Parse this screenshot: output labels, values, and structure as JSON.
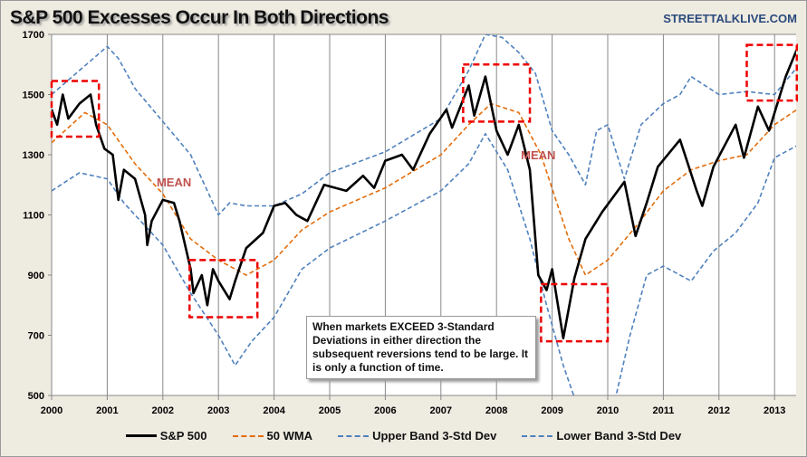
{
  "chart_data": {
    "type": "line",
    "title": "S&P 500 Excesses Occur In Both Directions",
    "source": "STREETTALKLIVE.COM",
    "xlim": [
      2000,
      2013.4
    ],
    "ylim": [
      500,
      1700
    ],
    "xticks": [
      2000,
      2001,
      2002,
      2003,
      2004,
      2005,
      2006,
      2007,
      2008,
      2009,
      2010,
      2011,
      2012,
      2013
    ],
    "yticks": [
      500,
      700,
      900,
      1100,
      1300,
      1500,
      1700
    ],
    "grid": "vertical",
    "legend_position": "bottom",
    "series": [
      {
        "name": "S&P 500",
        "color": "#000000",
        "style": "solid",
        "x": [
          2000,
          2000.1,
          2000.2,
          2000.3,
          2000.5,
          2000.7,
          2000.8,
          2000.95,
          2001.1,
          2001.2,
          2001.3,
          2001.5,
          2001.68,
          2001.72,
          2001.8,
          2002,
          2002.2,
          2002.3,
          2002.5,
          2002.55,
          2002.7,
          2002.8,
          2002.9,
          2003,
          2003.2,
          2003.3,
          2003.5,
          2003.8,
          2004,
          2004.2,
          2004.4,
          2004.6,
          2004.9,
          2005.3,
          2005.6,
          2005.8,
          2006,
          2006.3,
          2006.5,
          2006.8,
          2007.1,
          2007.2,
          2007.5,
          2007.6,
          2007.8,
          2008,
          2008.2,
          2008.4,
          2008.6,
          2008.75,
          2008.9,
          2009,
          2009.2,
          2009.4,
          2009.6,
          2009.9,
          2010.3,
          2010.5,
          2010.7,
          2010.9,
          2011.3,
          2011.6,
          2011.7,
          2011.9,
          2012.3,
          2012.45,
          2012.7,
          2012.9,
          2013.2,
          2013.4
        ],
        "y": [
          1450,
          1400,
          1500,
          1420,
          1470,
          1500,
          1400,
          1320,
          1300,
          1150,
          1250,
          1220,
          1100,
          1000,
          1080,
          1150,
          1140,
          1080,
          920,
          840,
          900,
          800,
          920,
          880,
          820,
          880,
          990,
          1040,
          1130,
          1140,
          1100,
          1080,
          1200,
          1180,
          1230,
          1190,
          1280,
          1300,
          1250,
          1370,
          1450,
          1390,
          1530,
          1430,
          1560,
          1380,
          1300,
          1400,
          1250,
          900,
          850,
          920,
          690,
          890,
          1020,
          1110,
          1210,
          1030,
          1140,
          1260,
          1350,
          1180,
          1130,
          1260,
          1400,
          1290,
          1460,
          1380,
          1560,
          1650
        ]
      },
      {
        "name": "50 WMA",
        "color": "#e46c0a",
        "style": "dash",
        "x": [
          2000,
          2000.6,
          2001,
          2001.5,
          2002,
          2002.5,
          2003,
          2003.5,
          2004,
          2004.5,
          2005,
          2006,
          2007,
          2007.5,
          2007.9,
          2008.4,
          2008.8,
          2009.3,
          2009.6,
          2010,
          2010.5,
          2011,
          2011.5,
          2012,
          2012.5,
          2013,
          2013.4
        ],
        "y": [
          1340,
          1440,
          1400,
          1270,
          1170,
          1020,
          950,
          900,
          950,
          1050,
          1110,
          1190,
          1300,
          1400,
          1470,
          1440,
          1300,
          1020,
          900,
          950,
          1060,
          1180,
          1250,
          1280,
          1300,
          1400,
          1450
        ]
      },
      {
        "name": "Upper Band 3-Std Dev",
        "color": "#4f81bd",
        "style": "dash",
        "x": [
          2000,
          2000.5,
          2001,
          2001.2,
          2001.5,
          2002,
          2002.5,
          2003,
          2003.2,
          2003.5,
          2004,
          2004.5,
          2005,
          2006,
          2007,
          2007.5,
          2007.8,
          2008.1,
          2008.4,
          2008.7,
          2009,
          2009.3,
          2009.6,
          2009.8,
          2010,
          2010.3,
          2010.6,
          2011,
          2011.3,
          2011.5,
          2012,
          2012.5,
          2013,
          2013.4
        ],
        "y": [
          1500,
          1580,
          1660,
          1620,
          1520,
          1410,
          1300,
          1100,
          1140,
          1130,
          1130,
          1170,
          1240,
          1310,
          1420,
          1580,
          1700,
          1690,
          1640,
          1570,
          1380,
          1300,
          1200,
          1380,
          1400,
          1220,
          1400,
          1470,
          1500,
          1560,
          1500,
          1510,
          1500,
          1590
        ]
      },
      {
        "name": "Lower Band 3-Std Dev",
        "color": "#4f81bd",
        "style": "dash",
        "x": [
          2000,
          2000.5,
          2001,
          2001.3,
          2001.6,
          2002,
          2002.5,
          2003,
          2003.3,
          2003.6,
          2004,
          2004.5,
          2005,
          2006,
          2007,
          2007.5,
          2007.8,
          2008.2,
          2008.6,
          2008.9,
          2009.2,
          2009.5,
          2010.1,
          2010.4,
          2010.7,
          2011,
          2011.5,
          2011.9,
          2012.3,
          2012.7,
          2013,
          2013.4
        ],
        "y": [
          1180,
          1240,
          1220,
          1140,
          1080,
          1000,
          840,
          700,
          600,
          680,
          760,
          920,
          990,
          1080,
          1180,
          1270,
          1370,
          1250,
          1020,
          800,
          600,
          440,
          460,
          700,
          900,
          930,
          880,
          980,
          1040,
          1140,
          1290,
          1330
        ]
      }
    ],
    "highlight_boxes": [
      {
        "x": [
          2000,
          2000.85
        ],
        "y": [
          1360,
          1545
        ]
      },
      {
        "x": [
          2002.48,
          2003.7
        ],
        "y": [
          760,
          950
        ]
      },
      {
        "x": [
          2007.4,
          2008.6
        ],
        "y": [
          1410,
          1600
        ]
      },
      {
        "x": [
          2008.8,
          2010
        ],
        "y": [
          680,
          870
        ]
      },
      {
        "x": [
          2012.5,
          2013.4
        ],
        "y": [
          1480,
          1665
        ]
      }
    ],
    "annotations": [
      {
        "text": "MEAN",
        "x": 2002.2,
        "y": 1195
      },
      {
        "text": "MEAN",
        "x": 2008.75,
        "y": 1285
      }
    ],
    "note": "When markets EXCEED 3-Standard Deviations in either  direction the subsequent reversions tend to be large.  It is only a function of time."
  }
}
